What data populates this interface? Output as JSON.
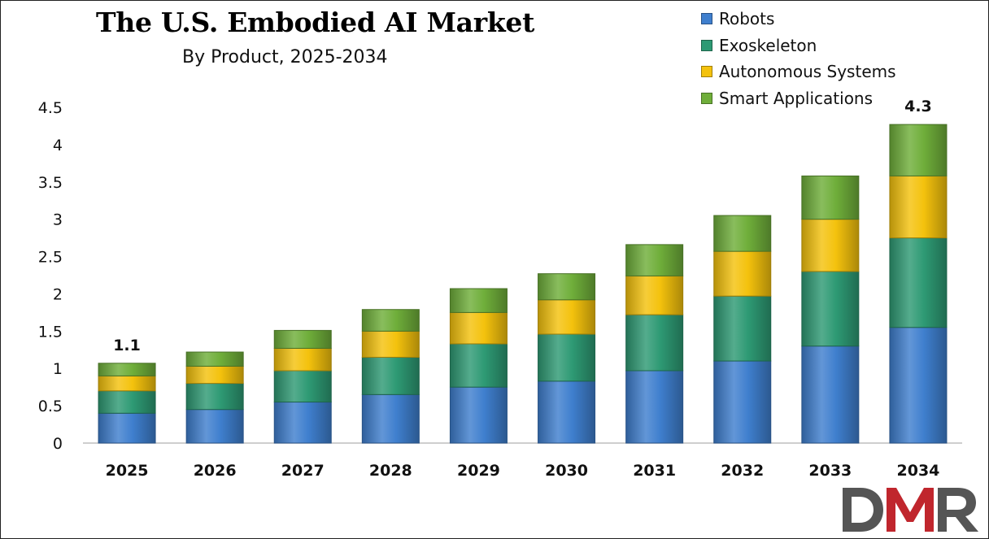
{
  "chart_data": {
    "type": "bar",
    "stacked": true,
    "title": "The U.S. Embodied AI Market",
    "subtitle": "By Product, 2025-2034",
    "categories": [
      "2025",
      "2026",
      "2027",
      "2028",
      "2029",
      "2030",
      "2031",
      "2032",
      "2033",
      "2034"
    ],
    "series": [
      {
        "name": "Robots",
        "color": "#3f7fce",
        "values": [
          0.4,
          0.45,
          0.55,
          0.65,
          0.75,
          0.83,
          0.97,
          1.1,
          1.3,
          1.55
        ]
      },
      {
        "name": "Exoskeleton",
        "color": "#2e9a74",
        "values": [
          0.3,
          0.35,
          0.42,
          0.5,
          0.58,
          0.63,
          0.75,
          0.87,
          1.0,
          1.2
        ]
      },
      {
        "name": "Autonomous Systems",
        "color": "#f4c20d",
        "values": [
          0.2,
          0.23,
          0.3,
          0.35,
          0.42,
          0.46,
          0.52,
          0.6,
          0.7,
          0.83
        ]
      },
      {
        "name": "Smart Applications",
        "color": "#6fae3a",
        "values": [
          0.17,
          0.19,
          0.24,
          0.29,
          0.32,
          0.35,
          0.42,
          0.48,
          0.58,
          0.69
        ]
      }
    ],
    "data_labels": [
      {
        "category": "2025",
        "text": "1.1"
      },
      {
        "category": "2034",
        "text": "4.3"
      }
    ],
    "ylim": [
      0,
      4.5
    ],
    "yticks": [
      "0",
      "0.5",
      "1",
      "1.5",
      "2",
      "2.5",
      "3",
      "3.5",
      "4",
      "4.5"
    ],
    "xlabel": "",
    "ylabel": "",
    "grid": false,
    "legend_position": "top-right"
  },
  "logo": {
    "text": "DMR"
  }
}
